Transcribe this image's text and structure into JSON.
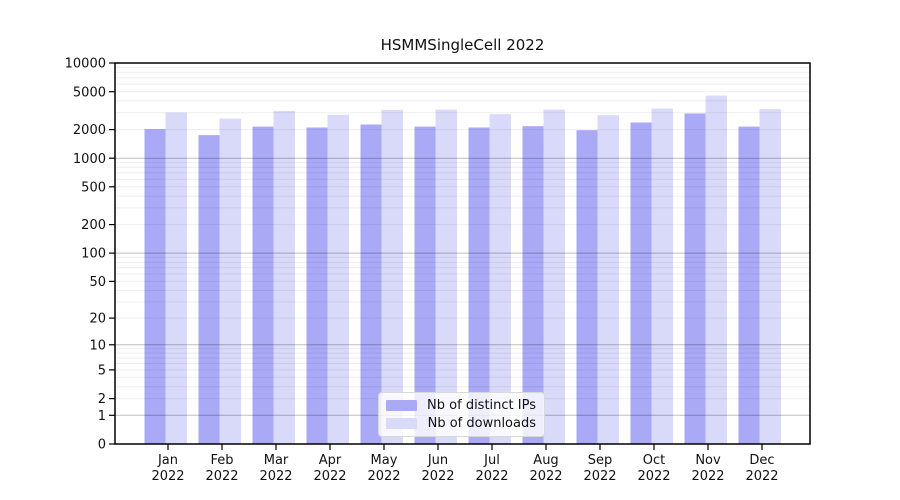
{
  "title": "HSMMSingleCell 2022",
  "colors": {
    "distinct_ips": "#a9a9f6",
    "downloads": "#d9d9f9",
    "axis_frame": "#000000",
    "grid_minor": "rgba(0,0,0,0.065)",
    "grid_decade": "rgba(0,0,0,0.25)",
    "text": "#111111"
  },
  "legend": {
    "items": [
      {
        "label": "Nb of distinct IPs",
        "color": "#a9a9f6"
      },
      {
        "label": "Nb of downloads",
        "color": "#d9d9f9"
      }
    ],
    "position": "lower center"
  },
  "chart_data": {
    "type": "bar",
    "title": "HSMMSingleCell 2022",
    "yscale": "log1p",
    "ylim": [
      0,
      10000
    ],
    "grid": true,
    "legend_position": "lower center",
    "y_ticks": [
      0,
      1,
      2,
      5,
      10,
      20,
      50,
      100,
      200,
      500,
      1000,
      2000,
      5000,
      10000
    ],
    "categories": [
      "Jan",
      "Feb",
      "Mar",
      "Apr",
      "May",
      "Jun",
      "Jul",
      "Aug",
      "Sep",
      "Oct",
      "Nov",
      "Dec"
    ],
    "year_label": "2022",
    "series": [
      {
        "name": "Nb of distinct IPs",
        "color": "#a9a9f6",
        "values": [
          2020,
          1750,
          2150,
          2100,
          2260,
          2150,
          2100,
          2170,
          1970,
          2370,
          2950,
          2150
        ]
      },
      {
        "name": "Nb of downloads",
        "color": "#d9d9f9",
        "values": [
          3020,
          2610,
          3140,
          2860,
          3220,
          3240,
          2900,
          3240,
          2830,
          3320,
          4550,
          3270
        ]
      }
    ]
  }
}
